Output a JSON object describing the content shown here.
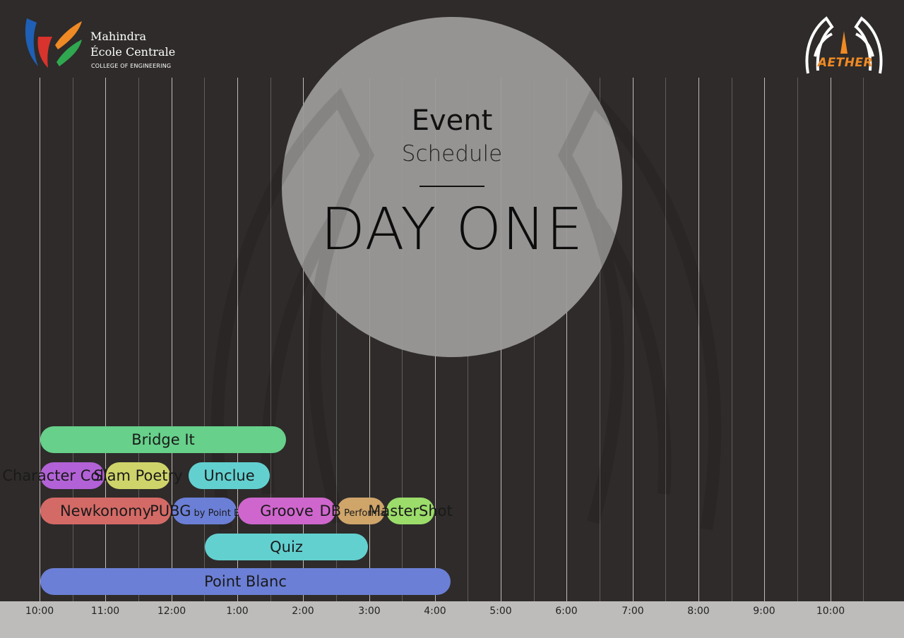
{
  "header": {
    "college_name_line1": "Mahindra",
    "college_name_line2": "École Centrale",
    "college_tagline": "COLLEGE OF ENGINEERING",
    "festival_name": "AETHER"
  },
  "title": {
    "line1": "Event",
    "line2": "Schedule",
    "day": "DAY ONE"
  },
  "axis": {
    "ticks": [
      "10:00",
      "11:00",
      "12:00",
      "1:00",
      "2:00",
      "3:00",
      "4:00",
      "5:00",
      "6:00",
      "7:00",
      "8:00",
      "9:00",
      "10:00"
    ]
  },
  "events": [
    {
      "name": "Bridge It",
      "sub": "",
      "start": 0,
      "end": 7.5,
      "row": 0,
      "color": "#67d08a"
    },
    {
      "name": "Character Collision",
      "sub": "",
      "start": 0,
      "end": 2,
      "row": 1,
      "color": "#b262d6"
    },
    {
      "name": "Slam Poetry",
      "sub": "",
      "start": 2,
      "end": 4,
      "row": 1,
      "color": "#cfd46a"
    },
    {
      "name": "Unclue",
      "sub": "",
      "start": 4.5,
      "end": 7,
      "row": 1,
      "color": "#63d0d0"
    },
    {
      "name": "Newkonomy",
      "sub": "",
      "start": 0,
      "end": 4,
      "row": 2,
      "color": "#d46a66"
    },
    {
      "name": "PUBG",
      "sub": "by Point Blanc",
      "start": 4,
      "end": 6,
      "row": 2,
      "color": "#6b7fd6"
    },
    {
      "name": "Groove",
      "sub": "",
      "start": 6,
      "end": 9,
      "row": 2,
      "color": "#cf66cd"
    },
    {
      "name": "DB",
      "sub": "Performance",
      "start": 9,
      "end": 10.5,
      "row": 2,
      "color": "#cfa56a"
    },
    {
      "name": "MasterShot",
      "sub": "",
      "start": 10.5,
      "end": 12,
      "row": 2,
      "color": "#9bdc6a"
    },
    {
      "name": "Quiz",
      "sub": "",
      "start": 5,
      "end": 10,
      "row": 3,
      "color": "#63d0d0"
    },
    {
      "name": "Point Blanc",
      "sub": "",
      "start": 0,
      "end": 12.5,
      "row": 4,
      "color": "#6b7fd6"
    }
  ]
}
